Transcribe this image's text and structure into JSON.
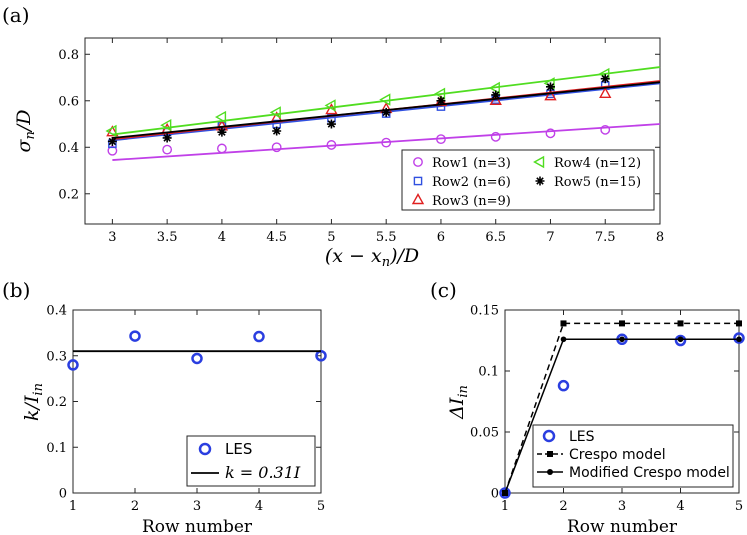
{
  "panel_labels": {
    "a": "(a)",
    "b": "(b)",
    "c": "(c)"
  },
  "chart_data": [
    {
      "id": "a",
      "type": "scatter",
      "xlabel_html": "(x − x_n)/D",
      "xlabel": "(x - x_n)/D",
      "ylabel": "σ_n/D",
      "xlim": [
        2.75,
        8
      ],
      "ylim": [
        0.07,
        0.87
      ],
      "xticks": [
        3,
        3.5,
        4,
        4.5,
        5,
        5.5,
        6,
        6.5,
        7,
        7.5,
        8
      ],
      "xtick_labels": [
        "3",
        "3.5",
        "4",
        "4.5",
        "5",
        "5.5",
        "6",
        "6.5",
        "7",
        "7.5",
        "8"
      ],
      "yticks": [
        0.2,
        0.4,
        0.6,
        0.8
      ],
      "ytick_labels": [
        "0.2",
        "0.4",
        "0.6",
        "0.8"
      ],
      "grid": false,
      "legend_position": "bottom-right",
      "series": [
        {
          "name": "Row1 (n=3)",
          "marker": "circle",
          "color": "#c040e8",
          "x": [
            3,
            3.5,
            4,
            4.5,
            5,
            5.5,
            6,
            6.5,
            7,
            7.5
          ],
          "y": [
            0.385,
            0.39,
            0.395,
            0.4,
            0.41,
            0.42,
            0.435,
            0.445,
            0.46,
            0.475
          ],
          "fit": [
            [
              3,
              0.345
            ],
            [
              8,
              0.5
            ]
          ]
        },
        {
          "name": "Row2 (n=6)",
          "marker": "square",
          "color": "#3050e0",
          "x": [
            3,
            3.5,
            4,
            4.5,
            5,
            5.5,
            6,
            6.5,
            7,
            7.5
          ],
          "y": [
            0.415,
            0.465,
            0.49,
            0.5,
            0.525,
            0.545,
            0.575,
            0.605,
            0.63,
            0.665
          ],
          "fit": [
            [
              3,
              0.43
            ],
            [
              8,
              0.675
            ]
          ]
        },
        {
          "name": "Row3 (n=9)",
          "marker": "triangle",
          "color": "#e02020",
          "x": [
            3,
            3.5,
            4,
            4.5,
            5,
            5.5,
            6,
            6.5,
            7,
            7.5
          ],
          "y": [
            0.465,
            0.475,
            0.49,
            0.525,
            0.56,
            0.565,
            0.595,
            0.6,
            0.62,
            0.63
          ],
          "fit": [
            [
              3,
              0.435
            ],
            [
              8,
              0.685
            ]
          ]
        },
        {
          "name": "Row4 (n=12)",
          "marker": "triangle-left",
          "color": "#50dd20",
          "x": [
            3,
            3.5,
            4,
            4.5,
            5,
            5.5,
            6,
            6.5,
            7,
            7.5
          ],
          "y": [
            0.47,
            0.495,
            0.53,
            0.55,
            0.58,
            0.605,
            0.63,
            0.655,
            0.675,
            0.715
          ],
          "fit": [
            [
              3,
              0.455
            ],
            [
              8,
              0.745
            ]
          ]
        },
        {
          "name": "Row5 (n=15)",
          "marker": "star",
          "color": "#000000",
          "x": [
            3,
            3.5,
            4,
            4.5,
            5,
            5.5,
            6,
            6.5,
            7,
            7.5
          ],
          "y": [
            0.425,
            0.44,
            0.465,
            0.47,
            0.5,
            0.55,
            0.6,
            0.625,
            0.66,
            0.695
          ],
          "fit": [
            [
              3,
              0.44
            ],
            [
              8,
              0.68
            ]
          ]
        }
      ]
    },
    {
      "id": "b",
      "type": "scatter",
      "xlabel": "Row number",
      "ylabel": "k/I_in",
      "xlim": [
        1,
        5
      ],
      "ylim": [
        0,
        0.4
      ],
      "xticks": [
        1,
        2,
        3,
        4,
        5
      ],
      "xtick_labels": [
        "1",
        "2",
        "3",
        "4",
        "5"
      ],
      "yticks": [
        0,
        0.1,
        0.2,
        0.3,
        0.4
      ],
      "ytick_labels": [
        "0",
        "0.1",
        "0.2",
        "0.3",
        "0.4"
      ],
      "grid": false,
      "legend_position": "bottom-right",
      "series": [
        {
          "name": "LES",
          "marker": "circle",
          "color": "#2a3ee0",
          "x": [
            1,
            2,
            3,
            4,
            5
          ],
          "y": [
            0.28,
            0.343,
            0.294,
            0.342,
            0.3
          ]
        },
        {
          "name": "k = 0.31I",
          "marker": "line",
          "color": "#000000",
          "x": [
            1,
            5
          ],
          "y": [
            0.31,
            0.31
          ]
        }
      ]
    },
    {
      "id": "c",
      "type": "line",
      "xlabel": "Row number",
      "ylabel": "ΔI_in",
      "xlim": [
        1,
        5
      ],
      "ylim": [
        0,
        0.15
      ],
      "xticks": [
        1,
        2,
        3,
        4,
        5
      ],
      "xtick_labels": [
        "1",
        "2",
        "3",
        "4",
        "5"
      ],
      "yticks": [
        0,
        0.05,
        0.1,
        0.15
      ],
      "ytick_labels": [
        "0",
        "0.05",
        "0.1",
        "0.15"
      ],
      "grid": false,
      "legend_position": "bottom-right",
      "series": [
        {
          "name": "LES",
          "marker": "circle",
          "color": "#2a3ee0",
          "x": [
            1,
            2,
            3,
            4,
            5
          ],
          "y": [
            0,
            0.088,
            0.126,
            0.125,
            0.127
          ]
        },
        {
          "name": "Crespo model",
          "marker": "square-dashed",
          "color": "#000000",
          "x": [
            1,
            2,
            3,
            4,
            5
          ],
          "y": [
            0,
            0.139,
            0.139,
            0.139,
            0.139
          ]
        },
        {
          "name": "Modified Crespo model",
          "marker": "dot-solid",
          "color": "#000000",
          "x": [
            1,
            2,
            3,
            4,
            5
          ],
          "y": [
            0,
            0.126,
            0.126,
            0.126,
            0.126
          ]
        }
      ]
    }
  ]
}
